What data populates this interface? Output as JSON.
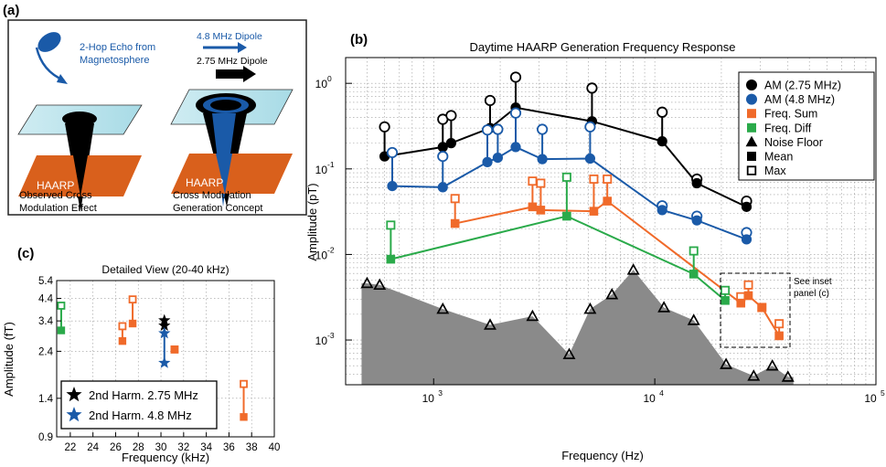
{
  "panel_a": {
    "label": "(a)",
    "echo_text": "2-Hop Echo from Magnetosphere",
    "dipole48_text": "4.8 MHz Dipole",
    "dipole275_text": "2.75 MHz Dipole",
    "haarp_left": "HAARP",
    "haarp_right": "HAARP",
    "caption_left": "Observed Cross Modulation Effect",
    "caption_right": "Cross Modulation Generation Concept"
  },
  "colors": {
    "am275": "#000000",
    "am48": "#1a5aa8",
    "fsum": "#f06a2a",
    "fdiff": "#2aaa4a",
    "noise": "#8a8a8a"
  },
  "chart_data": [
    {
      "id": "b",
      "type": "line",
      "panel_label": "(b)",
      "title": "Daytime HAARP Generation Frequency Response",
      "xlabel": "Frequency (Hz)",
      "ylabel": "Amplitude (pT)",
      "xscale": "log",
      "yscale": "log",
      "xlim": [
        400,
        100000
      ],
      "ylim": [
        0.0003,
        2
      ],
      "x_ticks": [
        {
          "v": 1000,
          "b": "10",
          "e": "3"
        },
        {
          "v": 10000,
          "b": "10",
          "e": "4"
        },
        {
          "v": 100000,
          "b": "10",
          "e": "5"
        }
      ],
      "y_ticks": [
        {
          "v": 0.001,
          "b": "10",
          "e": "-3"
        },
        {
          "v": 0.01,
          "b": "10",
          "e": "-2"
        },
        {
          "v": 0.1,
          "b": "10",
          "e": "-1"
        },
        {
          "v": 1,
          "b": "10",
          "e": "0"
        }
      ],
      "grid": true,
      "legend": {
        "position": "top-right",
        "entries": [
          "AM (2.75 MHz)",
          "AM (4.8 MHz)",
          "Freq. Sum",
          "Freq. Diff",
          "Noise Floor",
          "Mean",
          "Max"
        ]
      },
      "annotation": "See inset panel (c)",
      "series": [
        {
          "name": "AM (2.75 MHz)",
          "color": "am275",
          "marker": "circle",
          "x": [
            600,
            1100,
            1200,
            1800,
            2350,
            5200,
            10800,
            15500,
            26000
          ],
          "mean": [
            0.14,
            0.18,
            0.2,
            0.3,
            0.52,
            0.36,
            0.21,
            0.068,
            0.036
          ],
          "max": [
            0.31,
            0.38,
            0.42,
            0.63,
            1.18,
            0.88,
            0.46,
            0.076,
            0.042
          ]
        },
        {
          "name": "AM (4.8 MHz)",
          "color": "am48",
          "marker": "circle",
          "x": [
            650,
            1100,
            1750,
            1950,
            2350,
            3100,
            5100,
            10800,
            15500,
            26000
          ],
          "mean": [
            0.063,
            0.061,
            0.12,
            0.135,
            0.18,
            0.13,
            0.132,
            0.033,
            0.025,
            0.015
          ],
          "max": [
            0.155,
            0.14,
            0.285,
            0.29,
            0.45,
            0.29,
            0.31,
            0.037,
            0.028,
            0.018
          ]
        },
        {
          "name": "Freq. Sum",
          "color": "fsum",
          "marker": "square",
          "x": [
            1250,
            2800,
            3050,
            5300,
            6100,
            24500,
            26500,
            30500,
            36500
          ],
          "mean": [
            0.023,
            0.036,
            0.033,
            0.032,
            0.042,
            0.0027,
            0.0033,
            0.0024,
            0.00112
          ],
          "max": [
            0.045,
            0.072,
            0.068,
            0.076,
            0.076,
            0.0032,
            0.0044,
            0.0024,
            0.00155
          ]
        },
        {
          "name": "Freq. Diff",
          "color": "fdiff",
          "marker": "square",
          "x": [
            640,
            4000,
            15000,
            20800
          ],
          "mean": [
            0.0088,
            0.028,
            0.0059,
            0.0029
          ],
          "max": [
            0.022,
            0.08,
            0.011,
            0.0038
          ]
        },
        {
          "name": "Noise Floor",
          "color": "noise",
          "marker": "triangle",
          "x": [
            500,
            570,
            1100,
            1800,
            2800,
            4100,
            5100,
            6400,
            8000,
            11000,
            15000,
            21000,
            28000,
            34000,
            40000
          ],
          "y": [
            0.0046,
            0.0044,
            0.0023,
            0.0015,
            0.0019,
            0.00068,
            0.0023,
            0.0034,
            0.0066,
            0.0024,
            0.0017,
            0.00052,
            0.00038,
            0.0005,
            0.00037
          ]
        }
      ]
    },
    {
      "id": "c",
      "type": "scatter",
      "panel_label": "(c)",
      "title": "Detailed View (20-40 kHz)",
      "xlabel": "Frequency (kHz)",
      "ylabel": "Amplitude (fT)",
      "yscale": "log",
      "xlim": [
        20.8,
        40
      ],
      "ylim": [
        0.9,
        5.4
      ],
      "x_ticks": [
        "22",
        "24",
        "26",
        "28",
        "30",
        "32",
        "34",
        "36",
        "38",
        "40"
      ],
      "y_ticks": [
        "0.9",
        "1.4",
        "2.4",
        "3.4",
        "4.4",
        "5.4"
      ],
      "grid": true,
      "legend": {
        "position": "bottom-left",
        "entries": [
          "2nd Harm. 2.75 MHz",
          "2nd Harm. 4.8 MHz"
        ]
      },
      "series": [
        {
          "name": "Freq. Diff",
          "color": "fdiff",
          "x": [
            21.2
          ],
          "mean": [
            3.05
          ],
          "max": [
            4.05
          ]
        },
        {
          "name": "Freq. Sum",
          "color": "fsum",
          "x": [
            26.6,
            27.5,
            31.2,
            37.3
          ],
          "mean": [
            2.7,
            3.3,
            2.45,
            1.13
          ],
          "max": [
            3.2,
            4.35,
            2.45,
            1.65
          ]
        },
        {
          "name": "2nd Harm. 2.75 MHz",
          "color": "am275",
          "marker": "star",
          "x": [
            30.3
          ],
          "y": [
            3.32
          ]
        },
        {
          "name": "2nd Harm. 4.8 MHz",
          "color": "am48",
          "marker": "star",
          "x": [
            30.3
          ],
          "y": [
            2.95
          ]
        }
      ],
      "stars_275": [
        3.42,
        3.22
      ],
      "stars_48": [
        2.95,
        2.1
      ]
    }
  ]
}
